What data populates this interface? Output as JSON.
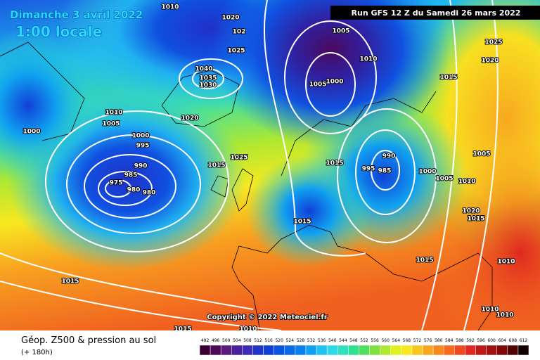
{
  "header": {
    "date": "Dimanche 3 avril 2022",
    "time": "1:00 locale",
    "run": "Run GFS 12 Z du Samedi 26 mars 2022"
  },
  "copyright": "Copyright © 2022 Meteociel.fr",
  "footer": {
    "product": "Géop. Z500 & pression au sol",
    "range": "(+ 180h)"
  },
  "isobar_labels": [
    "1010",
    "1020",
    "102",
    "1025",
    "1040",
    "1035",
    "1030",
    "1005",
    "1010",
    "1005",
    "1000",
    "1015",
    "1025",
    "1020",
    "1010",
    "1005",
    "1000",
    "1020",
    "1000",
    "995",
    "1025",
    "1015",
    "1015",
    "990",
    "995",
    "985",
    "1000",
    "1005",
    "1005",
    "1010",
    "990",
    "985",
    "975",
    "980",
    "980",
    "1015",
    "1020",
    "1015",
    "1015",
    "1010",
    "1015",
    "1010",
    "1010",
    "1015",
    "1010"
  ],
  "legend": {
    "values": [
      492,
      496,
      500,
      504,
      508,
      512,
      516,
      520,
      524,
      528,
      532,
      536,
      540,
      544,
      548,
      552,
      556,
      560,
      564,
      568,
      572,
      576,
      580,
      584,
      588,
      592,
      596,
      600,
      604,
      608,
      612
    ],
    "colors": [
      "#3a0033",
      "#4b0a55",
      "#5a1a7a",
      "#4a1f9a",
      "#3b2bb5",
      "#2035c8",
      "#1040d8",
      "#0a55e0",
      "#0a6ae8",
      "#0a80f0",
      "#10a0f0",
      "#20c0f0",
      "#30d8e8",
      "#30e0c0",
      "#30e090",
      "#50e060",
      "#80e040",
      "#b0e830",
      "#e0f020",
      "#f8e820",
      "#f8c820",
      "#f8a820",
      "#f88820",
      "#f86820",
      "#f04820",
      "#e02820",
      "#c01818",
      "#a01010",
      "#800808",
      "#500404",
      "#100000"
    ]
  }
}
